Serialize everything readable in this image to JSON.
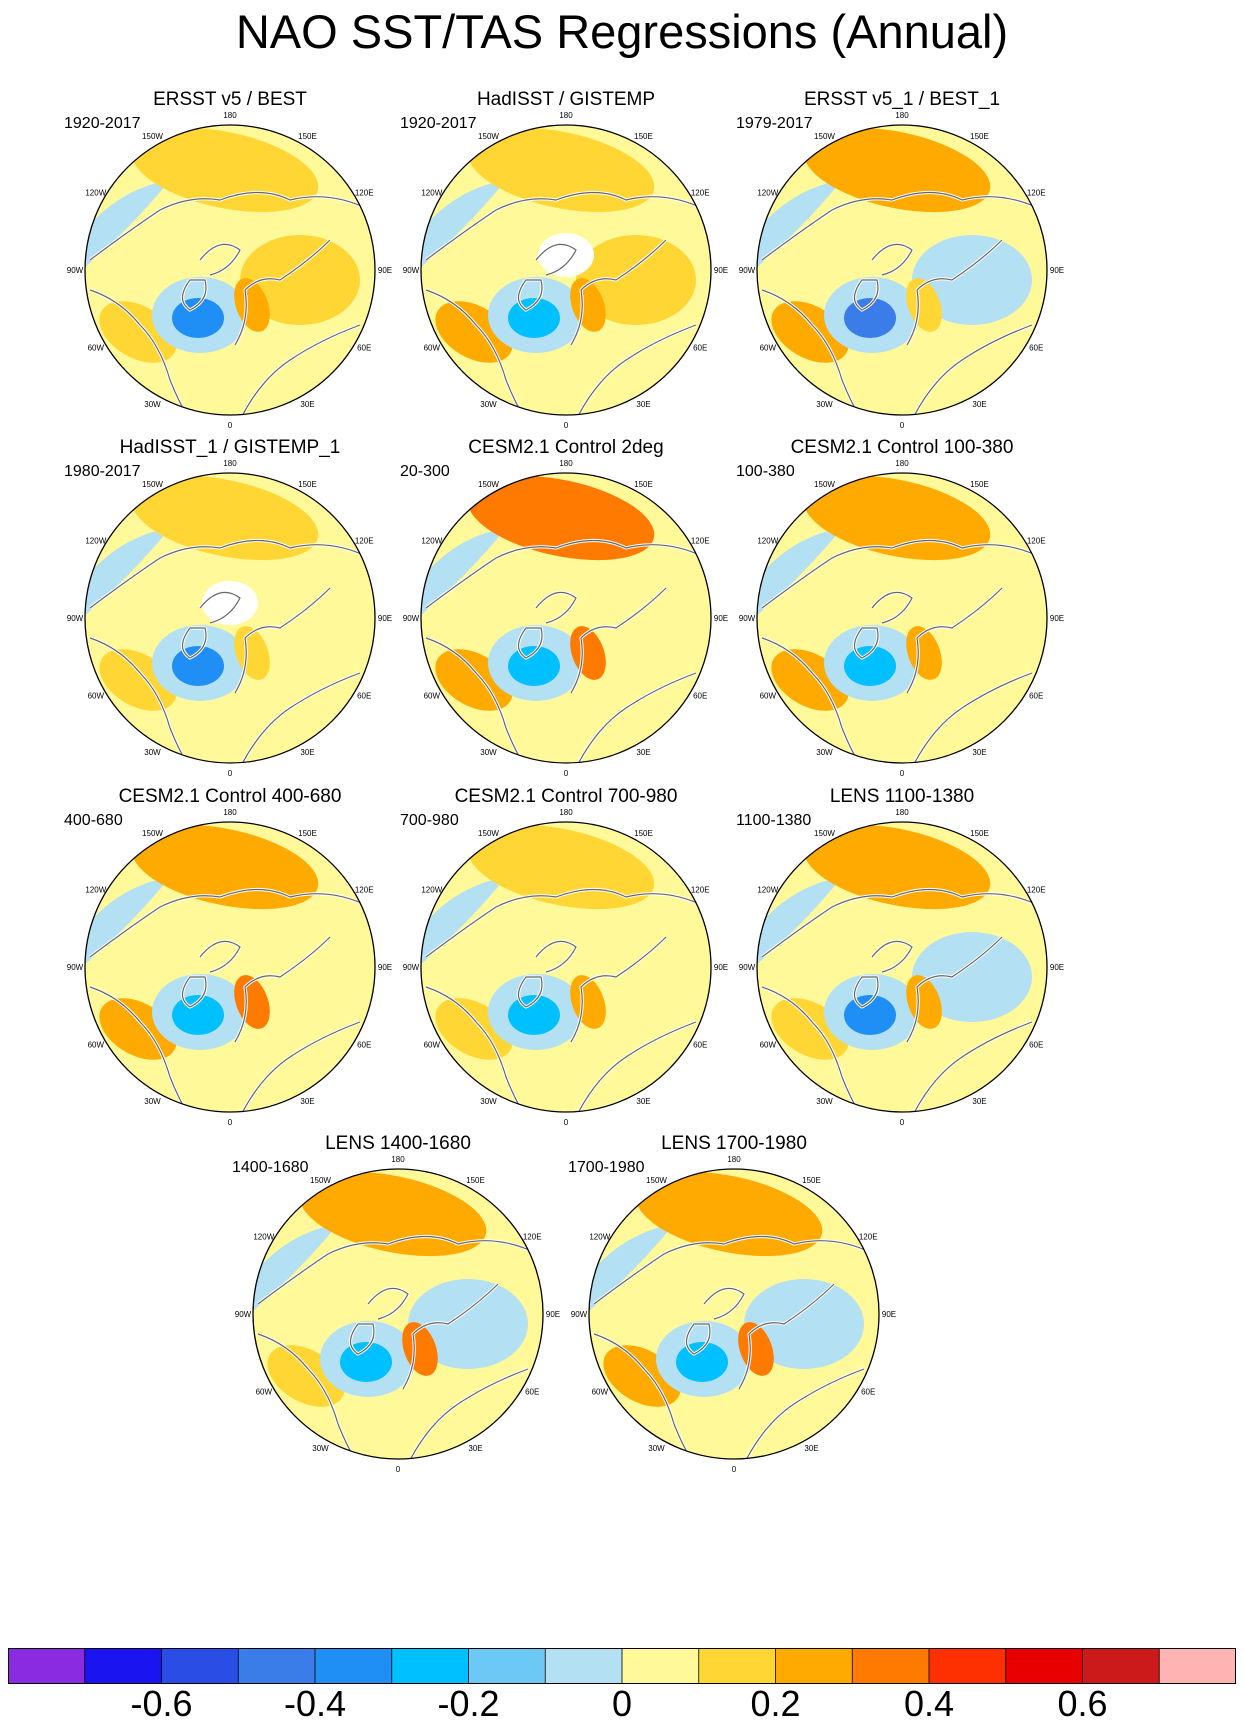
{
  "chart_data": {
    "type": "polar_contour_map",
    "title": "NAO SST/TAS Regressions (Annual)",
    "projection": "north-polar stereographic",
    "longitude_labels": [
      "180",
      "150E",
      "120E",
      "90E",
      "60E",
      "30E",
      "0",
      "30W",
      "60W",
      "90W",
      "120W",
      "150W"
    ],
    "panels": [
      {
        "title": "ERSST v5 / BEST",
        "period": "1920-2017",
        "missing_arctic": false,
        "features": {
          "north_pacific": 0.17,
          "subpolar_atlantic": -0.35,
          "subtropical_atlantic": 0.17,
          "europe": 0.25,
          "siberia": 0.17,
          "tropical_atlantic": -0.08
        }
      },
      {
        "title": "HadISST / GISTEMP",
        "period": "1920-2017",
        "missing_arctic": true,
        "features": {
          "north_pacific": 0.17,
          "subpolar_atlantic": -0.3,
          "subtropical_atlantic": 0.2,
          "europe": 0.2,
          "siberia": 0.17,
          "tropical_atlantic": 0.05
        }
      },
      {
        "title": "ERSST v5_1 / BEST_1",
        "period": "1979-2017",
        "missing_arctic": false,
        "features": {
          "north_pacific": 0.25,
          "subpolar_atlantic": -0.5,
          "subtropical_atlantic": 0.2,
          "europe": 0.15,
          "siberia": -0.08,
          "tropical_atlantic": -0.15
        }
      },
      {
        "title": "HadISST_1 / GISTEMP_1",
        "period": "1980-2017",
        "missing_arctic": true,
        "features": {
          "north_pacific": 0.15,
          "subpolar_atlantic": -0.35,
          "subtropical_atlantic": 0.17,
          "europe": 0.17,
          "siberia": 0.05,
          "tropical_atlantic": -0.15
        }
      },
      {
        "title": "CESM2.1 Control 2deg",
        "period": "20-300",
        "missing_arctic": false,
        "features": {
          "north_pacific": 0.3,
          "subpolar_atlantic": -0.25,
          "subtropical_atlantic": 0.2,
          "europe": 0.3,
          "siberia": 0.05,
          "tropical_atlantic": -0.08
        }
      },
      {
        "title": "CESM2.1 Control 100-380",
        "period": "100-380",
        "missing_arctic": false,
        "features": {
          "north_pacific": 0.2,
          "subpolar_atlantic": -0.25,
          "subtropical_atlantic": 0.25,
          "europe": 0.25,
          "siberia": 0.05,
          "tropical_atlantic": -0.08
        }
      },
      {
        "title": "CESM2.1 Control 400-680",
        "period": "400-680",
        "missing_arctic": false,
        "features": {
          "north_pacific": 0.22,
          "subpolar_atlantic": -0.3,
          "subtropical_atlantic": 0.25,
          "europe": 0.3,
          "siberia": 0.05,
          "tropical_atlantic": -0.08
        }
      },
      {
        "title": "CESM2.1 Control 700-980",
        "period": "700-980",
        "missing_arctic": false,
        "features": {
          "north_pacific": 0.17,
          "subpolar_atlantic": -0.22,
          "subtropical_atlantic": 0.17,
          "europe": 0.25,
          "siberia": 0.05,
          "tropical_atlantic": -0.08
        }
      },
      {
        "title": "LENS 1100-1380",
        "period": "1100-1380",
        "missing_arctic": false,
        "features": {
          "north_pacific": 0.25,
          "subpolar_atlantic": -0.35,
          "subtropical_atlantic": 0.17,
          "europe": 0.25,
          "siberia": -0.05,
          "tropical_atlantic": -0.08
        }
      },
      {
        "title": "LENS 1400-1680",
        "period": "1400-1680",
        "missing_arctic": false,
        "features": {
          "north_pacific": 0.2,
          "subpolar_atlantic": -0.3,
          "subtropical_atlantic": 0.17,
          "europe": 0.3,
          "siberia": -0.05,
          "tropical_atlantic": -0.08
        }
      },
      {
        "title": "LENS 1700-1980",
        "period": "1700-1980",
        "missing_arctic": false,
        "features": {
          "north_pacific": 0.25,
          "subpolar_atlantic": -0.3,
          "subtropical_atlantic": 0.22,
          "europe": 0.35,
          "siberia": -0.05,
          "tropical_atlantic": -0.08
        }
      }
    ],
    "colorbar": {
      "levels": [
        -0.7,
        -0.6,
        -0.5,
        -0.4,
        -0.3,
        -0.2,
        -0.1,
        0,
        0.1,
        0.2,
        0.3,
        0.4,
        0.5,
        0.6,
        0.7
      ],
      "colors": [
        "#8a2be2",
        "#1a14f0",
        "#2a4de6",
        "#3a7ce8",
        "#1f8ff5",
        "#00c0ff",
        "#6cc8f5",
        "#b3e0f2",
        "#fff99a",
        "#ffd633",
        "#ffaa00",
        "#ff7a00",
        "#ff3000",
        "#e80000",
        "#cc1a1a",
        "#ffb3b3"
      ],
      "tick_labels": [
        "-0.6",
        "-0.4",
        "-0.2",
        "0",
        "0.2",
        "0.4",
        "0.6"
      ],
      "tick_values": [
        -0.6,
        -0.4,
        -0.2,
        0,
        0.2,
        0.4,
        0.6
      ]
    }
  }
}
